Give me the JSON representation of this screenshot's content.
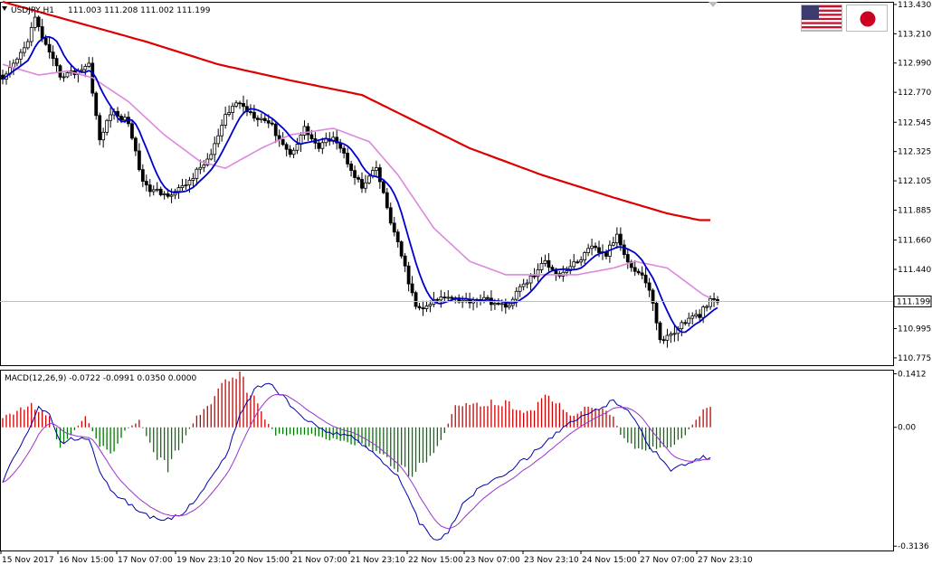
{
  "header": {
    "symbol_info": "USDJPY,H1",
    "ohlc_values": "111.003 111.208 111.002 111.199",
    "macd_info": "MACD(12,26,9) -0.0722 -0.0991 0.0350 0.0000"
  },
  "flags": {
    "us": "us-flag",
    "jp": "japan-flag"
  },
  "colors": {
    "background": "#ffffff",
    "grid_frame": "#000000",
    "candles": "#000000",
    "ma_fast": "#0000cc",
    "ma_mid": "#dd88dd",
    "ma_slow": "#dd0000",
    "macd_line": "#0000aa",
    "signal_line": "#9933cc",
    "hist_up": "#cc0000",
    "hist_down": "#007700",
    "current_price_line": "#c0c0c0"
  },
  "chart_data": [
    {
      "type": "candlestick",
      "name": "price",
      "price_axis_ticks": [
        "113.430",
        "113.210",
        "112.990",
        "112.770",
        "112.545",
        "112.325",
        "112.105",
        "111.885",
        "111.660",
        "111.440",
        "111.220",
        "110.995",
        "110.775"
      ],
      "ylim": [
        110.72,
        113.45
      ],
      "current_price": "111.199",
      "x_tick_labels": [
        "15 Nov 2017",
        "16 Nov 15:00",
        "17 Nov 07:00",
        "19 Nov 23:10",
        "20 Nov 15:00",
        "21 Nov 07:00",
        "21 Nov 23:10",
        "22 Nov 15:00",
        "23 Nov 07:00",
        "23 Nov 23:10",
        "24 Nov 15:00",
        "27 Nov 07:00",
        "27 Nov 23:10"
      ],
      "close_anchors": [
        [
          0,
          112.85
        ],
        [
          6,
          113.1
        ],
        [
          9,
          113.32
        ],
        [
          13,
          113.05
        ],
        [
          16,
          112.9
        ],
        [
          20,
          112.92
        ],
        [
          24,
          112.98
        ],
        [
          27,
          112.4
        ],
        [
          30,
          112.62
        ],
        [
          35,
          112.55
        ],
        [
          38,
          112.2
        ],
        [
          40,
          112.05
        ],
        [
          45,
          112.0
        ],
        [
          50,
          112.05
        ],
        [
          55,
          112.2
        ],
        [
          58,
          112.3
        ],
        [
          62,
          112.58
        ],
        [
          65,
          112.7
        ],
        [
          70,
          112.6
        ],
        [
          74,
          112.55
        ],
        [
          80,
          112.3
        ],
        [
          84,
          112.5
        ],
        [
          88,
          112.35
        ],
        [
          92,
          112.45
        ],
        [
          96,
          112.25
        ],
        [
          100,
          112.05
        ],
        [
          104,
          112.2
        ],
        [
          108,
          111.8
        ],
        [
          112,
          111.45
        ],
        [
          115,
          111.15
        ],
        [
          118,
          111.15
        ],
        [
          120,
          111.2
        ],
        [
          124,
          111.25
        ],
        [
          128,
          111.2
        ],
        [
          132,
          111.22
        ],
        [
          136,
          111.2
        ],
        [
          140,
          111.15
        ],
        [
          144,
          111.3
        ],
        [
          148,
          111.4
        ],
        [
          151,
          111.5
        ],
        [
          155,
          111.4
        ],
        [
          160,
          111.5
        ],
        [
          164,
          111.6
        ],
        [
          168,
          111.55
        ],
        [
          171,
          111.7
        ],
        [
          175,
          111.45
        ],
        [
          178,
          111.4
        ],
        [
          181,
          111.2
        ],
        [
          183,
          110.9
        ],
        [
          186,
          110.95
        ],
        [
          190,
          111.05
        ],
        [
          194,
          111.1
        ],
        [
          197,
          111.2
        ]
      ],
      "ma_slow_anchors": [
        [
          0,
          113.45
        ],
        [
          20,
          113.3
        ],
        [
          40,
          113.15
        ],
        [
          60,
          112.98
        ],
        [
          80,
          112.86
        ],
        [
          100,
          112.75
        ],
        [
          115,
          112.55
        ],
        [
          130,
          112.35
        ],
        [
          150,
          112.15
        ],
        [
          170,
          111.98
        ],
        [
          185,
          111.86
        ],
        [
          194,
          111.81
        ]
      ],
      "ma_mid_anchors": [
        [
          0,
          112.98
        ],
        [
          10,
          112.9
        ],
        [
          18,
          112.93
        ],
        [
          25,
          112.88
        ],
        [
          35,
          112.7
        ],
        [
          45,
          112.45
        ],
        [
          55,
          112.25
        ],
        [
          62,
          112.2
        ],
        [
          72,
          112.35
        ],
        [
          80,
          112.45
        ],
        [
          92,
          112.5
        ],
        [
          102,
          112.4
        ],
        [
          110,
          112.15
        ],
        [
          120,
          111.75
        ],
        [
          130,
          111.5
        ],
        [
          140,
          111.4
        ],
        [
          150,
          111.4
        ],
        [
          160,
          111.4
        ],
        [
          170,
          111.45
        ],
        [
          176,
          111.5
        ],
        [
          185,
          111.45
        ],
        [
          195,
          111.25
        ],
        [
          199,
          111.2
        ]
      ],
      "ma_fast_smoothing": 8
    },
    {
      "type": "macd",
      "name": "MACD(12,26,9)",
      "axis_ticks": [
        "0.1412",
        "0.00",
        "-0.3136"
      ],
      "ylim": [
        -0.325,
        0.152
      ],
      "histogram_anchors": [
        [
          0,
          0.03
        ],
        [
          8,
          0.06
        ],
        [
          13,
          0.03
        ],
        [
          16,
          -0.06
        ],
        [
          19,
          -0.02
        ],
        [
          23,
          0.03
        ],
        [
          27,
          -0.05
        ],
        [
          30,
          -0.08
        ],
        [
          34,
          -0.01
        ],
        [
          38,
          0.02
        ],
        [
          42,
          -0.07
        ],
        [
          46,
          -0.11
        ],
        [
          50,
          -0.04
        ],
        [
          54,
          0.03
        ],
        [
          58,
          0.07
        ],
        [
          62,
          0.12
        ],
        [
          66,
          0.14
        ],
        [
          69,
          0.1
        ],
        [
          72,
          0.04
        ],
        [
          76,
          -0.02
        ],
        [
          82,
          -0.02
        ],
        [
          86,
          -0.02
        ],
        [
          90,
          -0.03
        ],
        [
          96,
          -0.04
        ],
        [
          102,
          -0.06
        ],
        [
          108,
          -0.1
        ],
        [
          113,
          -0.13
        ],
        [
          117,
          -0.11
        ],
        [
          122,
          -0.04
        ],
        [
          126,
          0.06
        ],
        [
          132,
          0.06
        ],
        [
          138,
          0.07
        ],
        [
          142,
          0.06
        ],
        [
          146,
          0.04
        ],
        [
          150,
          0.07
        ],
        [
          152,
          0.09
        ],
        [
          155,
          0.06
        ],
        [
          158,
          0.03
        ],
        [
          162,
          0.05
        ],
        [
          165,
          0.06
        ],
        [
          168,
          0.04
        ],
        [
          170,
          0.03
        ],
        [
          172,
          -0.02
        ],
        [
          176,
          -0.06
        ],
        [
          180,
          -0.06
        ],
        [
          186,
          -0.05
        ],
        [
          190,
          -0.02
        ],
        [
          193,
          0.02
        ],
        [
          195,
          0.05
        ]
      ],
      "macd_anchors": [
        [
          0,
          -0.14
        ],
        [
          5,
          -0.05
        ],
        [
          10,
          0.05
        ],
        [
          13,
          0.03
        ],
        [
          16,
          -0.04
        ],
        [
          20,
          -0.03
        ],
        [
          24,
          -0.03
        ],
        [
          28,
          -0.14
        ],
        [
          32,
          -0.18
        ],
        [
          38,
          -0.22
        ],
        [
          44,
          -0.25
        ],
        [
          50,
          -0.23
        ],
        [
          56,
          -0.16
        ],
        [
          62,
          -0.08
        ],
        [
          66,
          0.03
        ],
        [
          70,
          0.1
        ],
        [
          74,
          0.12
        ],
        [
          78,
          0.08
        ],
        [
          84,
          0.02
        ],
        [
          90,
          -0.01
        ],
        [
          96,
          -0.02
        ],
        [
          104,
          -0.07
        ],
        [
          110,
          -0.13
        ],
        [
          116,
          -0.25
        ],
        [
          120,
          -0.3
        ],
        [
          124,
          -0.28
        ],
        [
          128,
          -0.2
        ],
        [
          134,
          -0.15
        ],
        [
          140,
          -0.12
        ],
        [
          146,
          -0.08
        ],
        [
          152,
          -0.03
        ],
        [
          158,
          0.01
        ],
        [
          164,
          0.04
        ],
        [
          170,
          0.07
        ],
        [
          174,
          0.05
        ],
        [
          180,
          -0.05
        ],
        [
          186,
          -0.11
        ],
        [
          190,
          -0.1
        ],
        [
          195,
          -0.08
        ]
      ]
    }
  ]
}
